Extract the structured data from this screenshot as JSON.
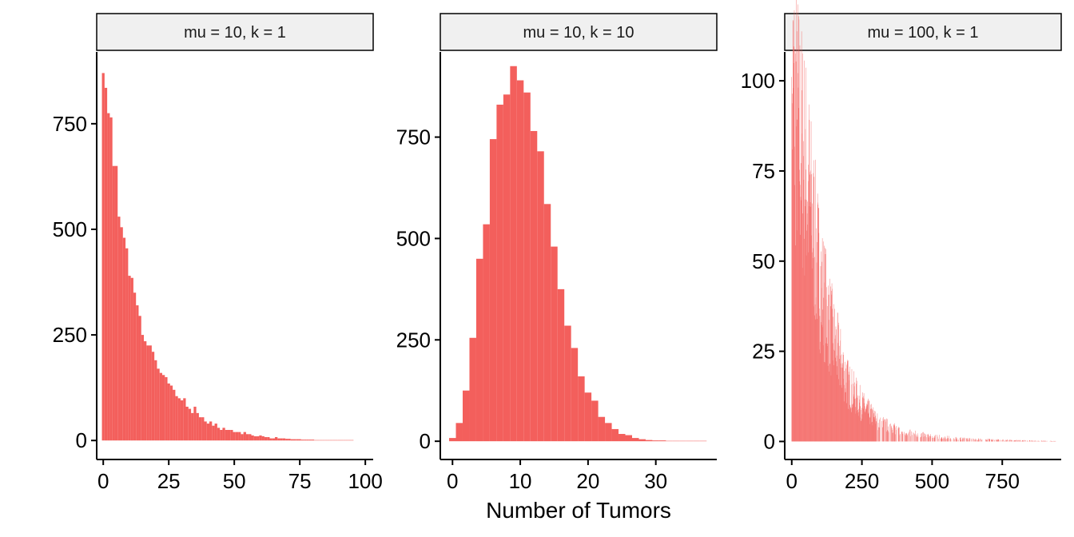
{
  "chart_data": {
    "type": "bar",
    "xlabel": "Number of Tumors",
    "ylabel": "",
    "bar_color": "#f35f5c",
    "panels": [
      {
        "strip": "mu = 10, k = 1",
        "x_ticks": [
          0,
          25,
          50,
          75,
          100
        ],
        "y_ticks": [
          0,
          250,
          500,
          750
        ],
        "xlim": [
          -2.5,
          103
        ],
        "ylim": [
          -45,
          920
        ],
        "binwidth": 1,
        "x_start": 0,
        "values": [
          870,
          835,
          775,
          765,
          650,
          650,
          530,
          505,
          480,
          455,
          390,
          385,
          350,
          320,
          295,
          250,
          235,
          225,
          225,
          210,
          190,
          170,
          160,
          155,
          150,
          135,
          130,
          120,
          105,
          100,
          95,
          100,
          80,
          75,
          65,
          80,
          65,
          55,
          55,
          45,
          40,
          45,
          35,
          40,
          30,
          25,
          30,
          25,
          25,
          25,
          20,
          20,
          20,
          15,
          20,
          15,
          15,
          12,
          10,
          10,
          12,
          10,
          8,
          8,
          5,
          5,
          8,
          5,
          5,
          5,
          4,
          4,
          3,
          3,
          3,
          3,
          2,
          2,
          2,
          2,
          2,
          1,
          1,
          1,
          1,
          1,
          1,
          1,
          1,
          1,
          1,
          1,
          1,
          1,
          1,
          1,
          0,
          0,
          0,
          0
        ]
      },
      {
        "strip": "mu = 10, k = 10",
        "x_ticks": [
          0,
          10,
          20,
          30
        ],
        "y_ticks": [
          0,
          250,
          500,
          750
        ],
        "xlim": [
          -1.8,
          39
        ],
        "ylim": [
          -45,
          960
        ],
        "binwidth": 1,
        "x_start": 0,
        "values": [
          8,
          45,
          125,
          255,
          450,
          535,
          745,
          830,
          855,
          925,
          890,
          860,
          765,
          715,
          585,
          480,
          375,
          285,
          230,
          160,
          120,
          100,
          60,
          45,
          30,
          18,
          15,
          8,
          5,
          3,
          2,
          2,
          1,
          1,
          1,
          1,
          1,
          1
        ]
      },
      {
        "strip": "mu = 100, k = 1",
        "x_ticks": [
          0,
          250,
          500,
          750
        ],
        "y_ticks": [
          0,
          25,
          50,
          75,
          100
        ],
        "xlim": [
          -25,
          960
        ],
        "ylim": [
          -5,
          108
        ],
        "binwidth": 1,
        "x_start": 0,
        "decay_profile": [
          {
            "x": 0,
            "y": 97
          },
          {
            "x": 50,
            "y": 75
          },
          {
            "x": 100,
            "y": 45
          },
          {
            "x": 150,
            "y": 28
          },
          {
            "x": 200,
            "y": 16
          },
          {
            "x": 250,
            "y": 10
          },
          {
            "x": 300,
            "y": 6
          },
          {
            "x": 350,
            "y": 4
          },
          {
            "x": 400,
            "y": 2.5
          },
          {
            "x": 500,
            "y": 1.5
          },
          {
            "x": 600,
            "y": 0.8
          },
          {
            "x": 750,
            "y": 0.4
          },
          {
            "x": 940,
            "y": 0.1
          }
        ]
      }
    ]
  }
}
